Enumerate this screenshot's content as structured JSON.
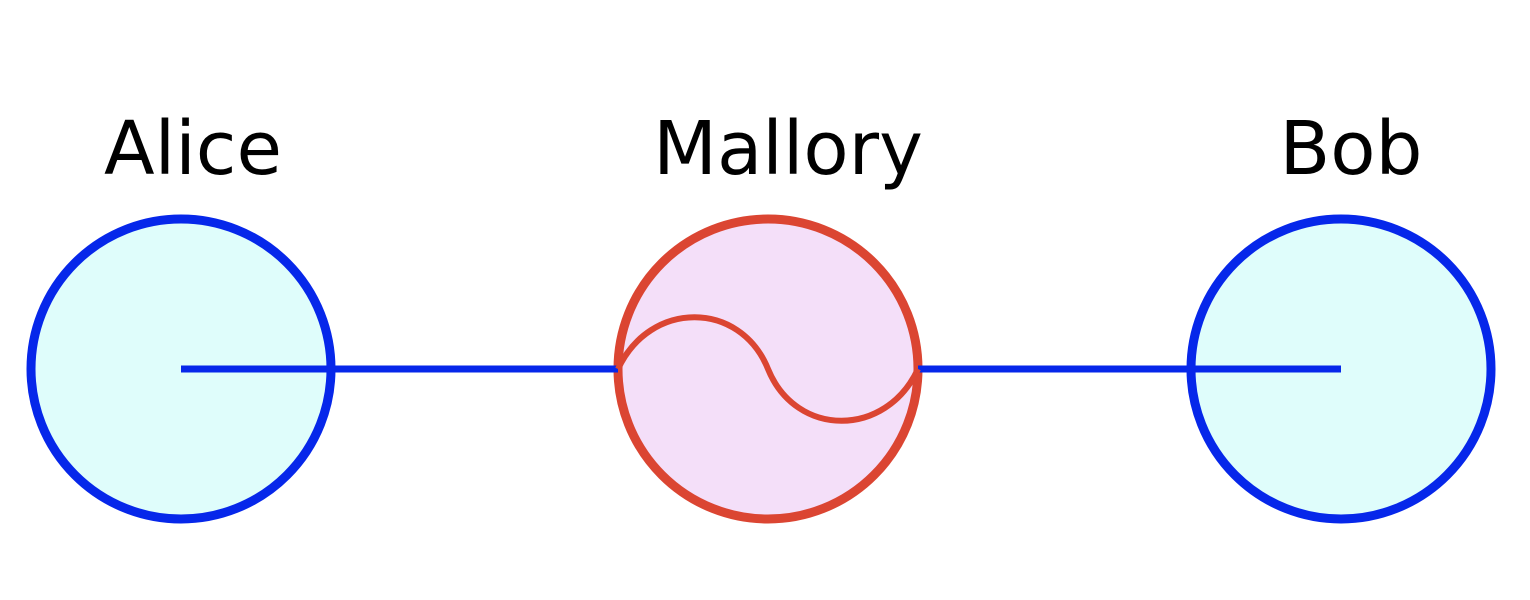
{
  "labels": {
    "alice": "Alice",
    "mallory": "Mallory",
    "bob": "Bob"
  },
  "colors": {
    "blue": "#0627ea",
    "red": "#db4532",
    "alice_fill": "#dffdfb",
    "mallory_fill": "#f4dff9",
    "bob_fill": "#dffdfb",
    "label_text": "#000000"
  }
}
